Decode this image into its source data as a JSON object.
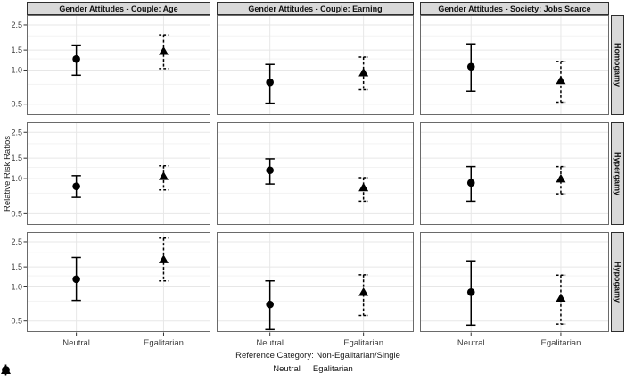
{
  "chart_data": {
    "type": "scatter",
    "subtype": "faceted point estimates with 95% confidence interval error bars (3 columns x 3 rows)",
    "col_facets": [
      "Gender Attitudes - Couple: Age",
      "Gender Attitudes - Couple: Earning",
      "Gender Attitudes - Society: Jobs Scarce"
    ],
    "row_facets": [
      "Homogamy",
      "Hypergamy",
      "Hypogamy"
    ],
    "x_categories": [
      "Neutral",
      "Egalitarian"
    ],
    "xlabel": "Reference Category: Non-Egalitarian/Single",
    "ylabel": "Relative Risk Ratios",
    "y_scale": "log",
    "ylim": [
      0.4,
      3.05
    ],
    "y_ticks": [
      "0.5",
      "1.0",
      "1.5",
      "2.5"
    ],
    "y_tick_values": [
      0.5,
      1.0,
      1.5,
      2.5
    ],
    "y_minor_values": [
      0.75,
      1.25,
      2.0
    ],
    "grid": true,
    "legend": {
      "position": "bottom",
      "items": [
        {
          "label": "Neutral",
          "marker": "circle",
          "linetype": "solid"
        },
        {
          "label": "Egalitarian",
          "marker": "triangle",
          "linetype": "dashed"
        }
      ]
    },
    "panels": [
      {
        "row": "Homogamy",
        "col": "Gender Attitudes - Couple: Age",
        "points": [
          {
            "category": "Neutral",
            "est": 1.25,
            "lo": 0.9,
            "hi": 1.66
          },
          {
            "category": "Egalitarian",
            "est": 1.47,
            "lo": 1.03,
            "hi": 2.04
          }
        ]
      },
      {
        "row": "Homogamy",
        "col": "Gender Attitudes - Couple: Earning",
        "points": [
          {
            "category": "Neutral",
            "est": 0.78,
            "lo": 0.51,
            "hi": 1.12
          },
          {
            "category": "Egalitarian",
            "est": 0.95,
            "lo": 0.67,
            "hi": 1.3
          }
        ]
      },
      {
        "row": "Homogamy",
        "col": "Gender Attitudes - Society: Jobs Scarce",
        "points": [
          {
            "category": "Neutral",
            "est": 1.07,
            "lo": 0.65,
            "hi": 1.7
          },
          {
            "category": "Egalitarian",
            "est": 0.81,
            "lo": 0.52,
            "hi": 1.19
          }
        ]
      },
      {
        "row": "Hypergamy",
        "col": "Gender Attitudes - Couple: Age",
        "points": [
          {
            "category": "Neutral",
            "est": 0.86,
            "lo": 0.69,
            "hi": 1.06
          },
          {
            "category": "Egalitarian",
            "est": 1.05,
            "lo": 0.8,
            "hi": 1.29
          }
        ]
      },
      {
        "row": "Hypergamy",
        "col": "Gender Attitudes - Couple: Earning",
        "points": [
          {
            "category": "Neutral",
            "est": 1.18,
            "lo": 0.9,
            "hi": 1.48
          },
          {
            "category": "Egalitarian",
            "est": 0.84,
            "lo": 0.64,
            "hi": 1.02
          }
        ]
      },
      {
        "row": "Hypergamy",
        "col": "Gender Attitudes - Society: Jobs Scarce",
        "points": [
          {
            "category": "Neutral",
            "est": 0.92,
            "lo": 0.64,
            "hi": 1.27
          },
          {
            "category": "Egalitarian",
            "est": 1.0,
            "lo": 0.74,
            "hi": 1.27
          }
        ]
      },
      {
        "row": "Hypogamy",
        "col": "Gender Attitudes - Couple: Age",
        "points": [
          {
            "category": "Neutral",
            "est": 1.17,
            "lo": 0.76,
            "hi": 1.82
          },
          {
            "category": "Egalitarian",
            "est": 1.75,
            "lo": 1.13,
            "hi": 2.7
          }
        ]
      },
      {
        "row": "Hypogamy",
        "col": "Gender Attitudes - Couple: Earning",
        "points": [
          {
            "category": "Neutral",
            "est": 0.7,
            "lo": 0.42,
            "hi": 1.13
          },
          {
            "category": "Egalitarian",
            "est": 0.9,
            "lo": 0.56,
            "hi": 1.28
          }
        ]
      },
      {
        "row": "Hypogamy",
        "col": "Gender Attitudes - Society: Jobs Scarce",
        "points": [
          {
            "category": "Neutral",
            "est": 0.9,
            "lo": 0.46,
            "hi": 1.7
          },
          {
            "category": "Egalitarian",
            "est": 0.8,
            "lo": 0.47,
            "hi": 1.27
          }
        ]
      }
    ],
    "colors": {
      "marker": "#000000",
      "strip_bg": "#d9d9d9",
      "strip_border": "#2e2e2e",
      "panel_border": "#6a6a6a",
      "panel_bg": "#ffffff",
      "grid_major": "#e7e7e7",
      "grid_minor": "#f3f3f3",
      "axis_text": "#404040",
      "axis_title": "#1a1a1a",
      "tick_mark": "#333333"
    }
  }
}
